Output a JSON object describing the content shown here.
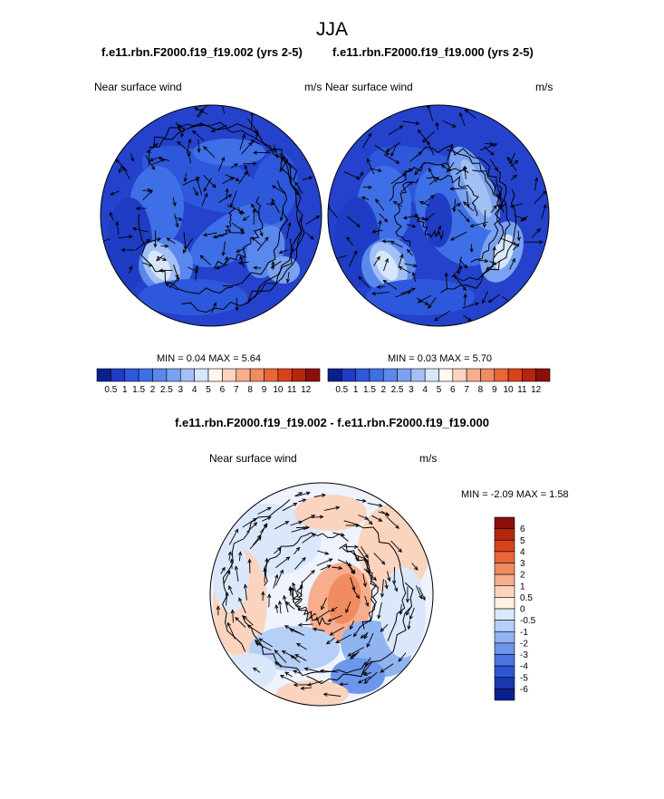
{
  "page": {
    "title": "JJA",
    "panel_left_title": "f.e11.rbn.F2000.f19_f19.002 (yrs 2-5)",
    "panel_right_title": "f.e11.rbn.F2000.f19_f19.000 (yrs 2-5)",
    "diff_title": "f.e11.rbn.F2000.f19_f19.002 - f.e11.rbn.F2000.f19_f19.000"
  },
  "panels": [
    {
      "variable": "Near surface wind",
      "units": "m/s",
      "min_label": "MIN =",
      "min": "0.04",
      "max_label": "MAX =",
      "max": "5.64"
    },
    {
      "variable": "Near surface wind",
      "units": "m/s",
      "min_label": "MIN =",
      "min": "0.03",
      "max_label": "MAX =",
      "max": "5.70"
    },
    {
      "variable": "Near surface wind",
      "units": "m/s",
      "min_label": "MIN =",
      "min": "-2.09",
      "max_label": "MAX =",
      "max": "1.58"
    }
  ],
  "chart_data": [
    {
      "type": "heatmap",
      "projection": "north polar stereographic",
      "title": "f.e11.rbn.F2000.f19_f19.002 (yrs 2-5)",
      "variable": "Near surface wind",
      "units": "m/s",
      "min": 0.04,
      "max": 5.64,
      "colorbar_levels": [
        "0.5",
        "1",
        "1.5",
        "2",
        "2.5",
        "3",
        "4",
        "5",
        "6",
        "7",
        "8",
        "9",
        "10",
        "11",
        "12"
      ],
      "colorbar_colors": [
        "#0a1f8f",
        "#1f3cc4",
        "#2e58db",
        "#3f6fe6",
        "#5a88ec",
        "#7aa2f0",
        "#a3c0f5",
        "#d7e6fb",
        "#fff6ef",
        "#fbd4c0",
        "#f6ae8c",
        "#f18b62",
        "#ea6638",
        "#d8431b",
        "#b6260f",
        "#8a0f0a"
      ]
    },
    {
      "type": "heatmap",
      "projection": "north polar stereographic",
      "title": "f.e11.rbn.F2000.f19_f19.000 (yrs 2-5)",
      "variable": "Near surface wind",
      "units": "m/s",
      "min": 0.03,
      "max": 5.7,
      "colorbar_levels": [
        "0.5",
        "1",
        "1.5",
        "2",
        "2.5",
        "3",
        "4",
        "5",
        "6",
        "7",
        "8",
        "9",
        "10",
        "11",
        "12"
      ]
    },
    {
      "type": "heatmap",
      "projection": "north polar stereographic",
      "title": "f.e11.rbn.F2000.f19_f19.002 - f.e11.rbn.F2000.f19_f19.000",
      "variable": "Near surface wind",
      "units": "m/s",
      "min": -2.09,
      "max": 1.58,
      "colorbar_levels": [
        "6",
        "5",
        "4",
        "3",
        "2",
        "1",
        "0.5",
        "0",
        "-0.5",
        "-1",
        "-2",
        "-3",
        "-4",
        "-5",
        "-6"
      ],
      "colorbar_colors": [
        "#8a0f0a",
        "#b6260f",
        "#d8431b",
        "#ea6638",
        "#f18b62",
        "#f6ae8c",
        "#fbd4c0",
        "#fff0e4",
        "#dbe8fb",
        "#b6cff7",
        "#90b3f2",
        "#6c95ec",
        "#4a75e3",
        "#2d55d4",
        "#1a36b0",
        "#0a1f8f"
      ]
    }
  ]
}
